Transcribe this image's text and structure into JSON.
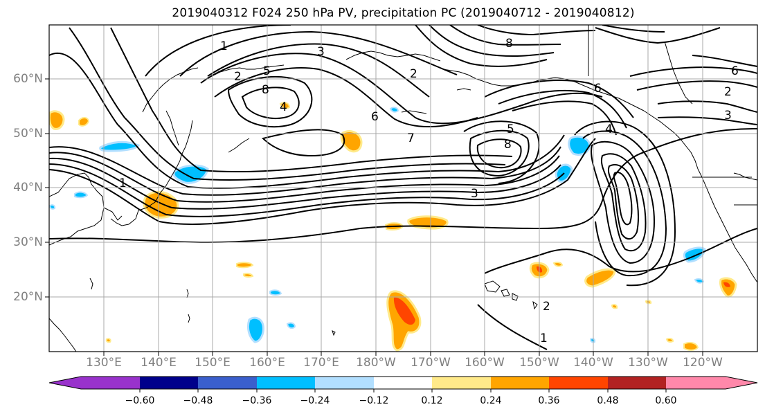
{
  "title": "2019040312 F024 250 hPa PV, precipitation PC (2019040712 - 2019040812)",
  "lat_labels": [
    "60°N",
    "50°N",
    "40°N",
    "30°N",
    "20°N"
  ],
  "lon_labels": [
    "130°E",
    "140°E",
    "150°E",
    "160°E",
    "170°E",
    "180°W",
    "170°W",
    "160°W",
    "150°W",
    "140°W",
    "130°W",
    "120°W"
  ],
  "colorbar": {
    "ticks": [
      "−0.60",
      "−0.48",
      "−0.36",
      "−0.24",
      "−0.12",
      "0.12",
      "0.24",
      "0.36",
      "0.48",
      "0.60"
    ],
    "colors": [
      "#9932cc",
      "#00008b",
      "#3a5fcd",
      "#00bfff",
      "#b2dfff",
      "#ffffff",
      "#ffea8a",
      "#ffa500",
      "#ff4500",
      "#b22222",
      "#ff88aa"
    ]
  },
  "contour_labels": [
    "1",
    "2",
    "3",
    "4",
    "5",
    "6",
    "7",
    "8",
    "1",
    "3",
    "2",
    "6",
    "5",
    "8",
    "4",
    "8",
    "6",
    "2",
    "3",
    "1",
    "2"
  ],
  "colors": {
    "positive": "#ffa500",
    "strong_positive": "#ff4500",
    "negative": "#00bfff"
  }
}
